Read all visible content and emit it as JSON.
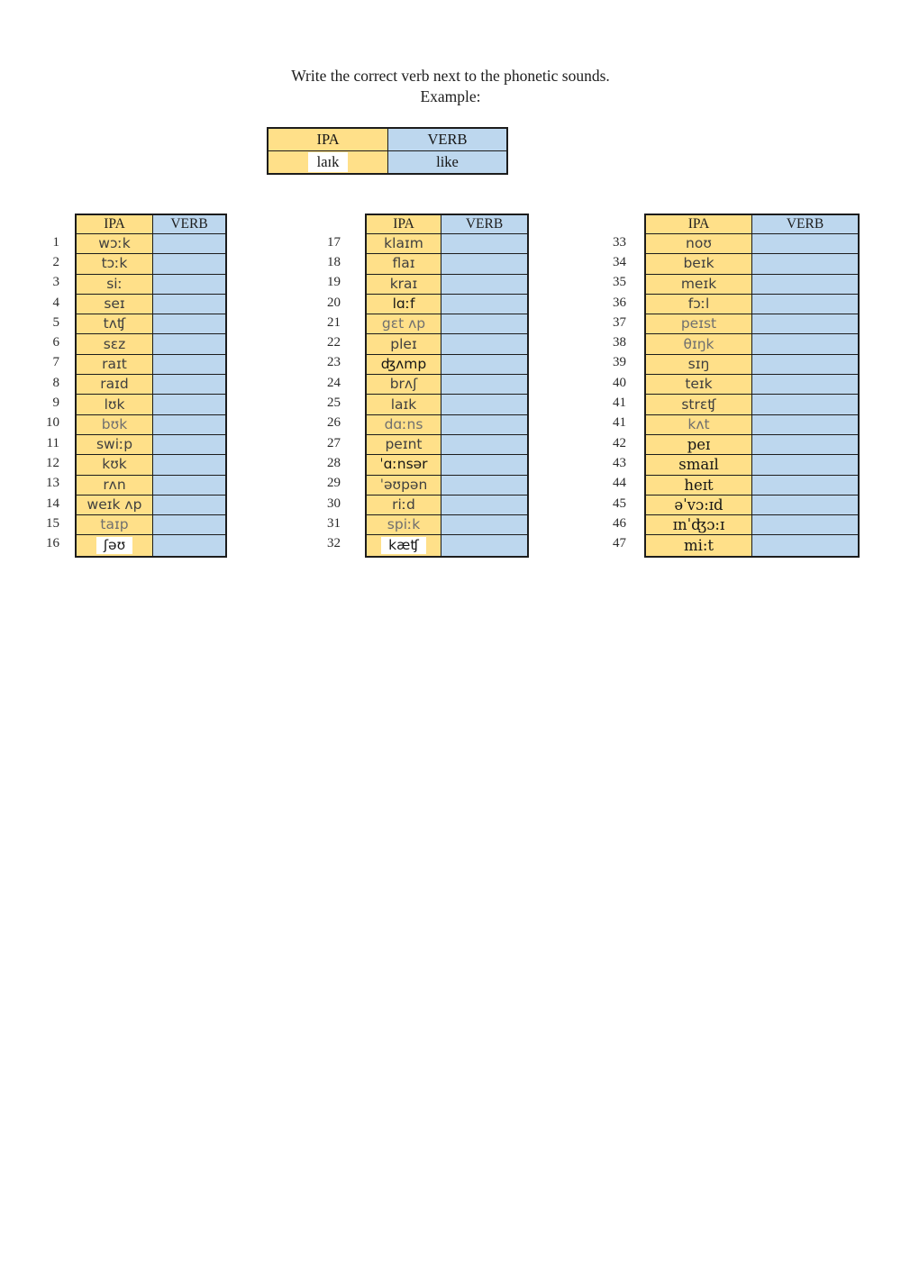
{
  "title": {
    "line1": "Write the correct verb next to the phonetic sounds.",
    "line2": "Example:"
  },
  "example": {
    "ipa_header": "IPA",
    "verb_header": "VERB",
    "ipa": "laɪk",
    "verb": "like"
  },
  "headers": {
    "ipa": "IPA",
    "verb": "VERB"
  },
  "tables": [
    {
      "rows": [
        {
          "n": "1",
          "ipa": "wɔːk"
        },
        {
          "n": "2",
          "ipa": "tɔːk"
        },
        {
          "n": "3",
          "ipa": "siː"
        },
        {
          "n": "4",
          "ipa": "seɪ"
        },
        {
          "n": "5",
          "ipa": "tʌʧ"
        },
        {
          "n": "6",
          "ipa": "sɛz"
        },
        {
          "n": "7",
          "ipa": "raɪt"
        },
        {
          "n": "8",
          "ipa": "raɪd"
        },
        {
          "n": "9",
          "ipa": "lʊk"
        },
        {
          "n": "10",
          "ipa": "bʊk",
          "c": "gray"
        },
        {
          "n": "11",
          "ipa": "swiːp"
        },
        {
          "n": "12",
          "ipa": "kʊk"
        },
        {
          "n": "13",
          "ipa": "rʌn"
        },
        {
          "n": "14",
          "ipa": "weɪk ʌp"
        },
        {
          "n": "15",
          "ipa": "taɪp",
          "c": "gray"
        },
        {
          "n": "16",
          "ipa": "ʃəʊ",
          "c": "black",
          "hl": true
        }
      ]
    },
    {
      "rows": [
        {
          "n": "17",
          "ipa": "klaɪm"
        },
        {
          "n": "18",
          "ipa": "flaɪ"
        },
        {
          "n": "19",
          "ipa": "kraɪ"
        },
        {
          "n": "20",
          "ipa": "lɑːf",
          "c": "black"
        },
        {
          "n": "21",
          "ipa": "gɛt ʌp",
          "c": "gray"
        },
        {
          "n": "22",
          "ipa": "pleɪ"
        },
        {
          "n": "23",
          "ipa": "ʤʌmp",
          "c": "black"
        },
        {
          "n": "24",
          "ipa": "brʌʃ"
        },
        {
          "n": "25",
          "ipa": "laɪk"
        },
        {
          "n": "26",
          "ipa": "dɑːns",
          "c": "gray"
        },
        {
          "n": "27",
          "ipa": "peɪnt"
        },
        {
          "n": "28",
          "ipa": "ˈɑːnsər",
          "c": "black"
        },
        {
          "n": "29",
          "ipa": "ˈəʊpən"
        },
        {
          "n": "30",
          "ipa": "riːd"
        },
        {
          "n": "31",
          "ipa": "spiːk",
          "c": "gray"
        },
        {
          "n": "32",
          "ipa": "kæʧ",
          "c": "black",
          "hl": true
        }
      ]
    },
    {
      "rows": [
        {
          "n": "33",
          "ipa": "noʊ"
        },
        {
          "n": "34",
          "ipa": "beɪk"
        },
        {
          "n": "35",
          "ipa": "meɪk"
        },
        {
          "n": "36",
          "ipa": "fɔːl"
        },
        {
          "n": "37",
          "ipa": "peɪst",
          "c": "gray"
        },
        {
          "n": "38",
          "ipa": "θɪŋk",
          "c": "gray"
        },
        {
          "n": "39",
          "ipa": "sɪŋ"
        },
        {
          "n": "40",
          "ipa": "teɪk"
        },
        {
          "n": "41",
          "ipa": "strɛʧ"
        },
        {
          "n": "41",
          "ipa": "kʌt",
          "c": "gray"
        },
        {
          "n": "42",
          "ipa": "peɪ",
          "serif": true
        },
        {
          "n": "43",
          "ipa": "smaɪl",
          "serif": true
        },
        {
          "n": "44",
          "ipa": "heɪt",
          "serif": true
        },
        {
          "n": "45",
          "ipa": "əˈvɔ:ɪd",
          "serif": true
        },
        {
          "n": "46",
          "ipa": "ɪnˈʤɔ:ɪ",
          "serif": true
        },
        {
          "n": "47",
          "ipa": "mi:t",
          "serif": true
        }
      ]
    }
  ],
  "colors": {
    "cell_yellow": "#ffe089",
    "cell_blue": "#bdd7ee",
    "border": "#1c1c1c",
    "text_dark": "#3f3f3f",
    "text_gray": "#6f6f6f",
    "text_black": "#161616"
  }
}
